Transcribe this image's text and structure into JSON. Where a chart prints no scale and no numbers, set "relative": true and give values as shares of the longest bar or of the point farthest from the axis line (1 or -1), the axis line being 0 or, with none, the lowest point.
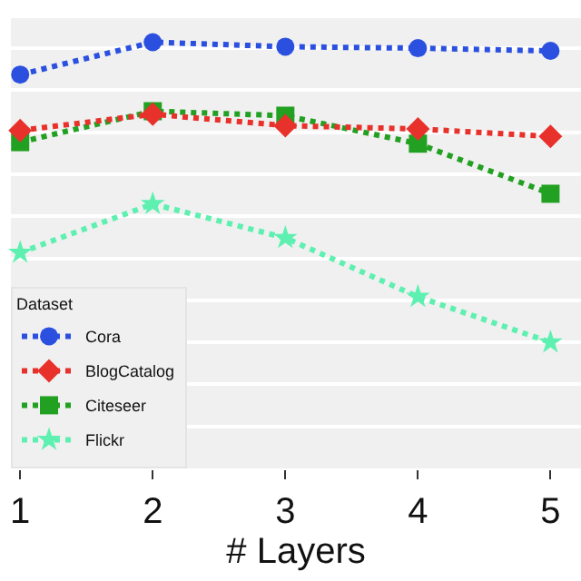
{
  "chart_data": {
    "type": "line",
    "relative": true,
    "xlabel": "# Layers",
    "x": [
      1,
      2,
      3,
      4,
      5
    ],
    "xlim": [
      0.93,
      5.23
    ],
    "xticks": [
      1,
      2,
      3,
      4,
      5
    ],
    "legend_title": "Dataset",
    "legend": "bottom left",
    "grid": "y",
    "line_style": "dotted",
    "series": [
      {
        "name": "Cora",
        "color": "#2b50e0",
        "marker": "circle",
        "values": [
          0.892,
          1.0,
          0.985,
          0.98,
          0.971
        ]
      },
      {
        "name": "BlogCatalog",
        "color": "#e8312a",
        "marker": "diamond",
        "values": [
          0.706,
          0.76,
          0.722,
          0.711,
          0.686
        ]
      },
      {
        "name": "Citeseer",
        "color": "#22a022",
        "marker": "square",
        "values": [
          0.667,
          0.77,
          0.755,
          0.662,
          0.495
        ]
      },
      {
        "name": "Flickr",
        "color": "#5ef0b0",
        "marker": "star",
        "values": [
          0.299,
          0.461,
          0.348,
          0.152,
          0.0
        ]
      }
    ]
  }
}
